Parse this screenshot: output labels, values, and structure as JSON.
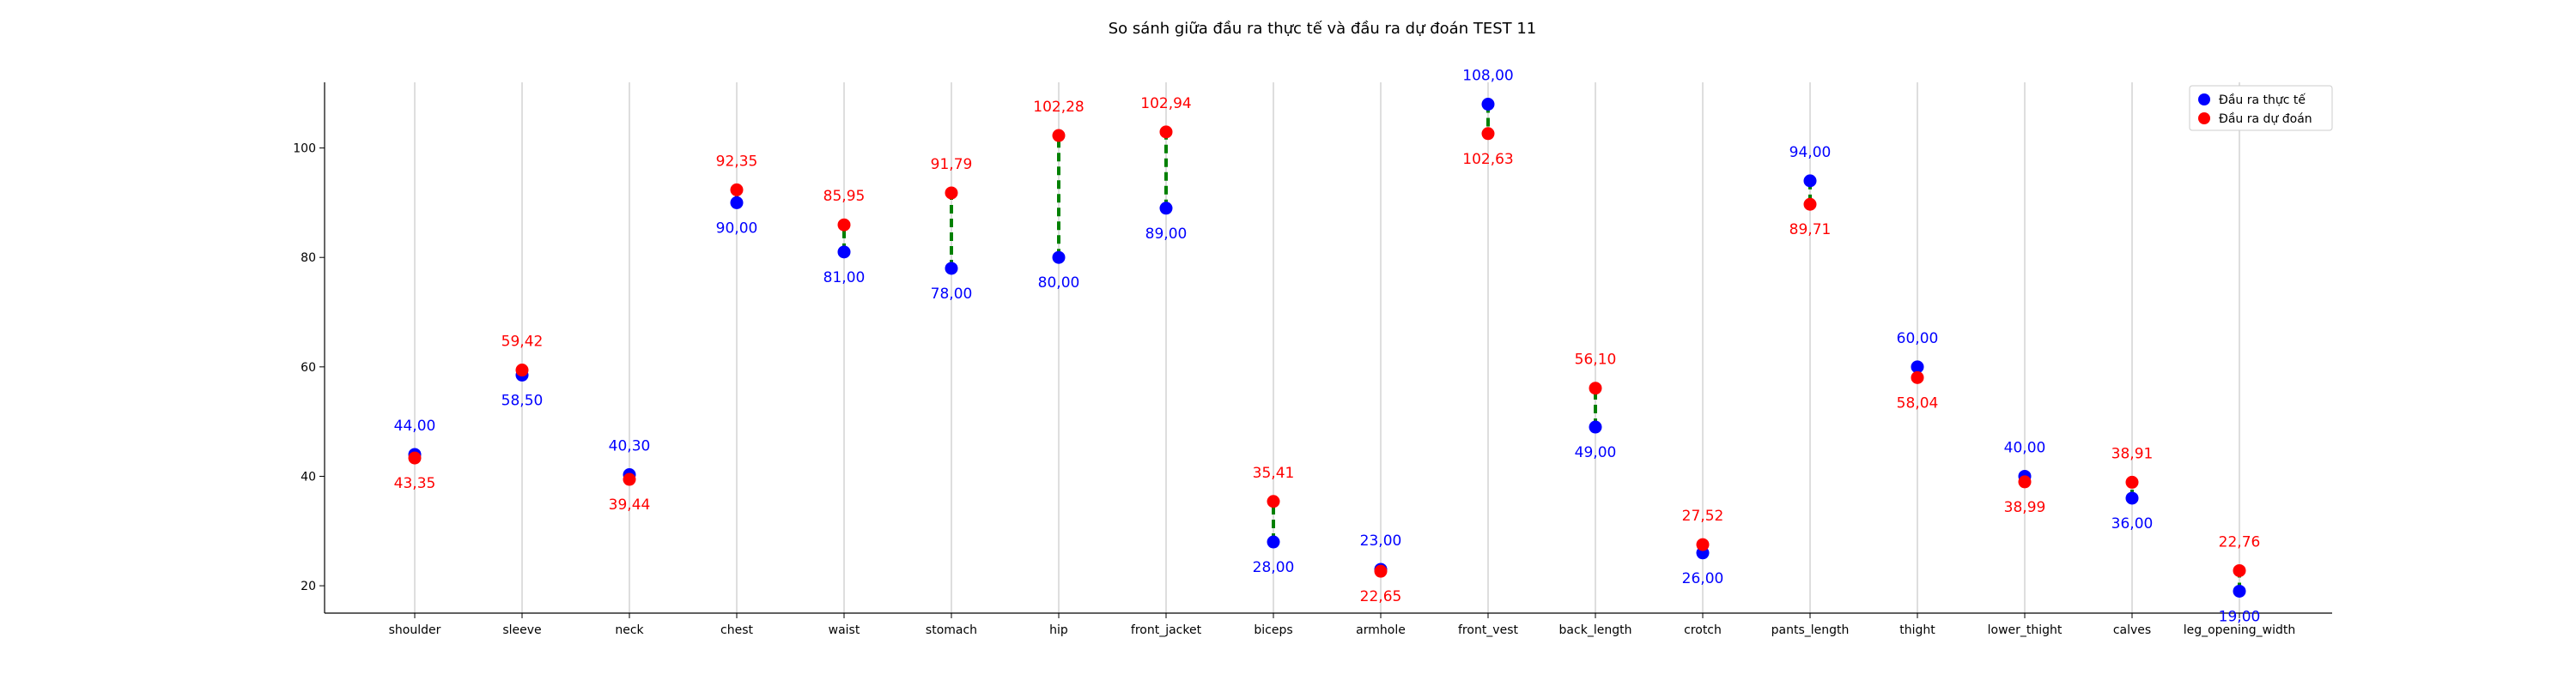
{
  "chart_data": {
    "type": "scatter",
    "title": "So sánh giữa đầu ra thực tế và đầu ra dự đoán TEST 11",
    "xlabel": "",
    "ylabel": "",
    "ylim": [
      15,
      112
    ],
    "yticks": [
      20,
      40,
      60,
      80,
      100
    ],
    "grid": "vertical",
    "legend_position": "top-right",
    "categories": [
      "shoulder",
      "sleeve",
      "neck",
      "chest",
      "waist",
      "stomach",
      "hip",
      "front_jacket",
      "biceps",
      "armhole",
      "front_vest",
      "back_length",
      "crotch",
      "pants_length",
      "thight",
      "lower_thight",
      "calves",
      "leg_opening_width"
    ],
    "series": [
      {
        "name": "Đầu ra thực tế",
        "color": "#0000ff",
        "values": [
          44.0,
          58.5,
          40.3,
          90.0,
          81.0,
          78.0,
          80.0,
          89.0,
          28.0,
          23.0,
          108.0,
          49.0,
          26.0,
          94.0,
          60.0,
          40.0,
          36.0,
          19.0
        ],
        "labels": [
          "44,00",
          "58,50",
          "40,30",
          "90,00",
          "81,00",
          "78,00",
          "80,00",
          "89,00",
          "28,00",
          "23,00",
          "108,00",
          "49,00",
          "26,00",
          "94,00",
          "60,00",
          "40,00",
          "36,00",
          "19,00"
        ]
      },
      {
        "name": "Đầu ra dự đoán",
        "color": "#ff0000",
        "values": [
          43.35,
          59.42,
          39.44,
          92.35,
          85.95,
          91.79,
          102.28,
          102.94,
          35.41,
          22.65,
          102.63,
          56.1,
          27.52,
          89.71,
          58.04,
          38.99,
          38.91,
          22.76
        ],
        "labels": [
          "43,35",
          "59,42",
          "39,44",
          "92,35",
          "85,95",
          "91,79",
          "102,28",
          "102,94",
          "35,41",
          "22,65",
          "102,63",
          "56,10",
          "27,52",
          "89,71",
          "58,04",
          "38,99",
          "38,91",
          "22,76"
        ]
      }
    ],
    "connector_color": "#008000",
    "grid_color": "#c8c8c8"
  }
}
